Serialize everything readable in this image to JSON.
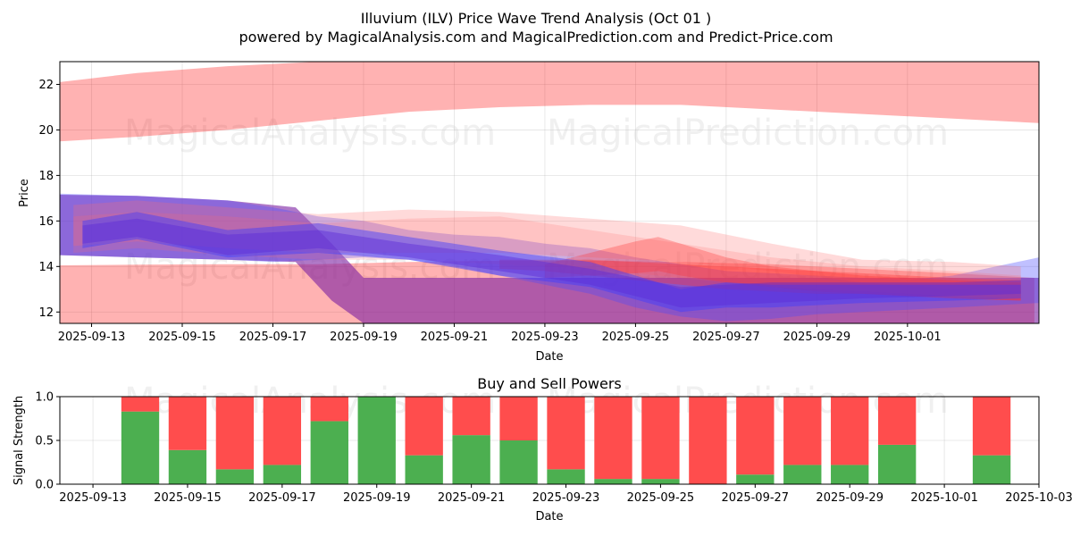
{
  "chart_data": [
    {
      "type": "area",
      "title_line1": "Illuvium (ILV) Price Wave Trend Analysis (Oct 01 )",
      "title_line2": "powered by MagicalAnalysis.com and MagicalPrediction.com and Predict-Price.com",
      "xlabel": "Date",
      "ylabel": "Price",
      "ylim": [
        11.5,
        23.0
      ],
      "yticks": [
        12,
        14,
        16,
        18,
        20,
        22
      ],
      "xlim_days": [
        -0.7,
        20.9
      ],
      "x_tick_days": [
        0,
        2,
        4,
        6,
        8,
        10,
        12,
        14,
        16,
        18
      ],
      "x_tick_labels": [
        "2025-09-13",
        "2025-09-15",
        "2025-09-17",
        "2025-09-19",
        "2025-09-21",
        "2025-09-23",
        "2025-09-25",
        "2025-09-27",
        "2025-09-29",
        "2025-10-01"
      ],
      "grid": true,
      "watermarks": [
        "MagicalAnalysis.com",
        "MagicalPrediction.com"
      ],
      "bands": [
        {
          "name": "upper-wave",
          "color": "#ff0000",
          "alpha": 0.3,
          "x": [
            -0.7,
            1,
            3,
            5,
            7,
            9,
            11,
            13,
            15,
            17,
            19,
            20.9
          ],
          "upper": [
            22.1,
            22.5,
            22.8,
            23.0,
            23.1,
            23.2,
            23.2,
            23.2,
            23.2,
            23.1,
            23.0,
            23.0
          ],
          "lower": [
            19.5,
            19.7,
            20.0,
            20.4,
            20.8,
            21.0,
            21.1,
            21.1,
            20.9,
            20.7,
            20.5,
            20.3
          ]
        },
        {
          "name": "lower-wave",
          "color": "#ff0000",
          "alpha": 0.3,
          "x": [
            -0.7,
            1,
            3,
            4,
            5,
            7,
            9,
            11,
            13,
            15,
            17,
            19,
            20.8
          ],
          "upper": [
            14.05,
            14.08,
            14.1,
            14.1,
            14.1,
            14.2,
            14.25,
            14.25,
            14.2,
            14.1,
            13.9,
            13.7,
            13.5
          ],
          "lower": [
            11.5,
            11.5,
            11.5,
            11.5,
            11.5,
            11.5,
            11.5,
            11.5,
            11.5,
            11.5,
            11.5,
            11.5,
            11.5
          ]
        },
        {
          "name": "purple-band",
          "color": "#7b1fa2",
          "alpha": 0.6,
          "x": [
            -0.7,
            1,
            3,
            4.5,
            5.3,
            6,
            8,
            10,
            12,
            14,
            16,
            18,
            20.9
          ],
          "upper": [
            17.15,
            17.1,
            16.9,
            16.6,
            15.0,
            13.5,
            13.5,
            13.5,
            13.5,
            13.5,
            13.5,
            13.5,
            13.5
          ],
          "lower": [
            14.5,
            14.4,
            14.3,
            14.2,
            12.5,
            11.5,
            11.5,
            11.5,
            11.5,
            11.5,
            11.5,
            11.5,
            11.5
          ]
        },
        {
          "name": "blue-wave-1",
          "color": "#4b4bff",
          "alpha": 0.35,
          "x": [
            -0.7,
            1,
            3,
            4,
            5,
            6,
            7,
            8,
            9,
            10,
            11,
            12,
            13,
            14,
            15,
            16,
            17,
            18,
            19,
            20.9
          ],
          "upper": [
            17.2,
            17.1,
            16.9,
            16.6,
            16.2,
            16.0,
            15.6,
            15.4,
            15.3,
            15.0,
            14.8,
            14.4,
            14.1,
            13.8,
            13.7,
            13.6,
            13.5,
            13.4,
            13.6,
            14.4
          ],
          "lower": [
            14.5,
            14.4,
            14.3,
            14.2,
            14.3,
            14.4,
            14.3,
            14.0,
            13.6,
            13.2,
            12.8,
            12.2,
            11.8,
            11.6,
            11.7,
            11.9,
            12.0,
            12.1,
            12.2,
            12.4
          ]
        },
        {
          "name": "pink-wave-1",
          "color": "#ff6b6b",
          "alpha": 0.25,
          "x": [
            -0.4,
            1,
            3,
            5,
            7,
            9,
            11,
            13,
            15,
            17,
            19,
            20.5
          ],
          "upper": [
            16.7,
            16.9,
            16.6,
            16.3,
            16.5,
            16.4,
            16.1,
            15.8,
            15.0,
            14.3,
            14.2,
            14.0
          ],
          "lower": [
            14.9,
            15.1,
            14.8,
            14.6,
            14.6,
            14.6,
            14.4,
            14.2,
            13.8,
            13.3,
            13.0,
            12.9
          ]
        },
        {
          "name": "pink-wave-2",
          "color": "#ff6b6b",
          "alpha": 0.2,
          "x": [
            -0.4,
            1,
            3,
            5,
            7,
            9,
            11,
            13,
            15,
            17,
            19,
            20.5
          ],
          "upper": [
            16.2,
            16.4,
            16.2,
            15.9,
            16.1,
            16.2,
            15.6,
            15.0,
            14.4,
            14.0,
            13.8,
            13.6
          ],
          "lower": [
            14.6,
            14.8,
            14.5,
            14.3,
            14.3,
            14.1,
            13.9,
            13.5,
            13.1,
            12.9,
            12.7,
            12.6
          ]
        },
        {
          "name": "red-wave-1",
          "color": "#ff3030",
          "alpha": 0.35,
          "x": [
            9,
            10,
            11,
            12,
            13,
            14,
            15,
            16,
            17,
            18,
            19,
            20.5
          ],
          "upper": [
            14.3,
            14.3,
            14.3,
            14.2,
            14.1,
            14.0,
            13.9,
            13.8,
            13.7,
            13.6,
            13.5,
            13.4
          ],
          "lower": [
            13.9,
            13.8,
            13.6,
            13.4,
            13.2,
            13.0,
            12.9,
            12.8,
            12.8,
            12.7,
            12.6,
            12.5
          ]
        },
        {
          "name": "red-wave-2",
          "color": "#ff3030",
          "alpha": 0.3,
          "x": [
            10,
            11,
            12,
            12.5,
            13,
            14,
            15,
            16,
            17,
            18,
            19,
            20.5
          ],
          "upper": [
            14.1,
            14.6,
            15.1,
            15.3,
            15.0,
            14.4,
            14.0,
            13.8,
            13.6,
            13.5,
            13.4,
            13.3
          ],
          "lower": [
            13.5,
            13.6,
            13.7,
            13.8,
            13.6,
            13.3,
            13.1,
            12.9,
            12.8,
            12.7,
            12.6,
            12.5
          ]
        },
        {
          "name": "blue-wave-2",
          "color": "#3c3cff",
          "alpha": 0.45,
          "x": [
            -0.2,
            1,
            3,
            5,
            7,
            9,
            11,
            13,
            14,
            15,
            17,
            19,
            20.5
          ],
          "upper": [
            16.0,
            16.4,
            15.6,
            15.9,
            15.3,
            14.7,
            14.2,
            13.0,
            13.3,
            13.2,
            13.2,
            13.2,
            13.2
          ],
          "lower": [
            14.8,
            15.2,
            14.4,
            14.6,
            14.3,
            13.6,
            13.1,
            12.0,
            12.2,
            12.2,
            12.4,
            12.5,
            12.6
          ]
        },
        {
          "name": "blue-wave-3",
          "color": "#5a2bd6",
          "alpha": 0.45,
          "x": [
            -0.2,
            1,
            3,
            5,
            7,
            9,
            11,
            13,
            14,
            15,
            17,
            19,
            20.5
          ],
          "upper": [
            15.8,
            16.1,
            15.4,
            15.6,
            15.0,
            14.5,
            13.9,
            13.1,
            13.2,
            13.3,
            13.3,
            13.3,
            13.4
          ],
          "lower": [
            15.0,
            15.3,
            14.5,
            14.8,
            14.4,
            13.8,
            13.2,
            12.2,
            12.3,
            12.4,
            12.6,
            12.7,
            12.8
          ]
        }
      ]
    },
    {
      "type": "bar",
      "title": "Buy and Sell Powers",
      "xlabel": "Date",
      "ylabel": "Signal Strength",
      "ylim": [
        0.0,
        1.0
      ],
      "yticks": [
        "0.0",
        "0.5",
        "1.0"
      ],
      "xlim_days": [
        -0.7,
        20.0
      ],
      "x_tick_days": [
        0,
        2,
        4,
        6,
        8,
        10,
        12,
        14,
        16,
        18,
        20
      ],
      "x_tick_labels": [
        "2025-09-13",
        "2025-09-15",
        "2025-09-17",
        "2025-09-19",
        "2025-09-21",
        "2025-09-23",
        "2025-09-25",
        "2025-09-27",
        "2025-09-29",
        "2025-10-01",
        "2025-10-03"
      ],
      "grid": true,
      "watermarks": [
        "MagicalAnalysis.com",
        "MagicalPrediction.com"
      ],
      "colors": {
        "buy": "#4caf50",
        "sell": "#ff4d4d"
      },
      "bar_width_days": 0.8,
      "bars": [
        {
          "day": 1,
          "buy": 0.83,
          "sell": 0.17
        },
        {
          "day": 2,
          "buy": 0.39,
          "sell": 0.61
        },
        {
          "day": 3,
          "buy": 0.17,
          "sell": 0.83
        },
        {
          "day": 4,
          "buy": 0.22,
          "sell": 0.78
        },
        {
          "day": 5,
          "buy": 0.72,
          "sell": 0.28
        },
        {
          "day": 6,
          "buy": 1.0,
          "sell": 0.0
        },
        {
          "day": 7,
          "buy": 0.33,
          "sell": 0.67
        },
        {
          "day": 8,
          "buy": 0.56,
          "sell": 0.44
        },
        {
          "day": 9,
          "buy": 0.5,
          "sell": 0.5
        },
        {
          "day": 10,
          "buy": 0.17,
          "sell": 0.83
        },
        {
          "day": 11,
          "buy": 0.06,
          "sell": 0.94
        },
        {
          "day": 12,
          "buy": 0.06,
          "sell": 0.94
        },
        {
          "day": 13,
          "buy": 0.0,
          "sell": 1.0
        },
        {
          "day": 14,
          "buy": 0.11,
          "sell": 0.89
        },
        {
          "day": 15,
          "buy": 0.22,
          "sell": 0.78
        },
        {
          "day": 16,
          "buy": 0.22,
          "sell": 0.78
        },
        {
          "day": 17,
          "buy": 0.45,
          "sell": 0.55
        },
        {
          "day": 19,
          "buy": 0.33,
          "sell": 0.67
        }
      ]
    }
  ]
}
